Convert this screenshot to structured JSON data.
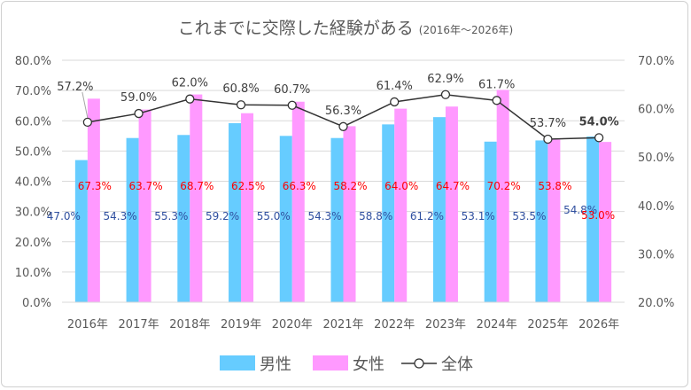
{
  "chart_data": {
    "type": "bar+line",
    "title": "これまでに交際した経験がある",
    "subtitle": "(2016年～2026年)",
    "categories": [
      "2016年",
      "2017年",
      "2018年",
      "2019年",
      "2020年",
      "2021年",
      "2022年",
      "2023年",
      "2024年",
      "2025年",
      "2026年"
    ],
    "series": [
      {
        "name": "男性",
        "type": "bar",
        "axis": "left",
        "color": "#66ccff",
        "label_color": "#2f4f9f",
        "values": [
          47.0,
          54.3,
          55.3,
          59.2,
          55.0,
          54.3,
          58.8,
          61.2,
          53.1,
          53.5,
          54.8
        ],
        "labels": [
          "47.0%",
          "54.3%",
          "55.3%",
          "59.2%",
          "55.0%",
          "54.3%",
          "58.8%",
          "61.2%",
          "53.1%",
          "53.5%",
          "54.8%"
        ]
      },
      {
        "name": "女性",
        "type": "bar",
        "axis": "left",
        "color": "#ff99ff",
        "label_color": "#ff0000",
        "values": [
          67.3,
          63.7,
          68.7,
          62.5,
          66.3,
          58.2,
          64.0,
          64.7,
          70.2,
          53.8,
          53.0
        ],
        "labels": [
          "67.3%",
          "63.7%",
          "68.7%",
          "62.5%",
          "66.3%",
          "58.2%",
          "64.0%",
          "64.7%",
          "70.2%",
          "53.8%",
          "53.0%"
        ]
      },
      {
        "name": "全体",
        "type": "line",
        "axis": "right",
        "color": "#333333",
        "values": [
          57.2,
          59.0,
          62.0,
          60.8,
          60.7,
          56.3,
          61.4,
          62.9,
          61.7,
          53.7,
          54.0
        ],
        "labels": [
          "57.2%",
          "59.0%",
          "62.0%",
          "60.8%",
          "60.7%",
          "56.3%",
          "61.4%",
          "62.9%",
          "61.7%",
          "53.7%",
          "54.0%"
        ]
      }
    ],
    "y_left": {
      "range": [
        0,
        80
      ],
      "ticks": [
        "0.0%",
        "10.0%",
        "20.0%",
        "30.0%",
        "40.0%",
        "50.0%",
        "60.0%",
        "70.0%",
        "80.0%"
      ]
    },
    "y_right": {
      "range": [
        20,
        70
      ],
      "ticks": [
        "20.0%",
        "30.0%",
        "40.0%",
        "50.0%",
        "60.0%",
        "70.0%"
      ]
    },
    "grid": true,
    "legend": "bottom"
  }
}
